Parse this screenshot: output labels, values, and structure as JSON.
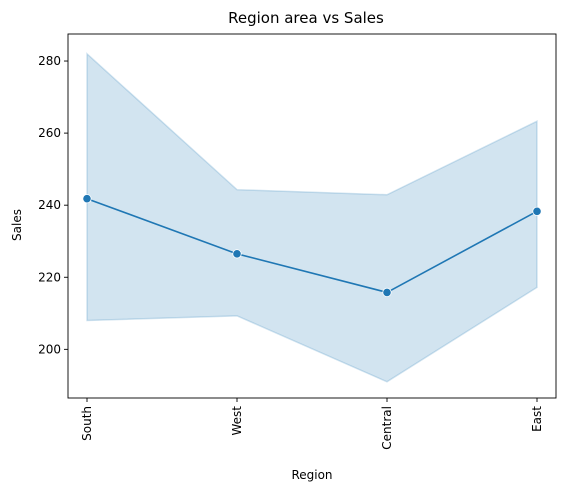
{
  "chart_data": {
    "type": "line",
    "title": "Region area vs Sales",
    "xlabel": "Region",
    "ylabel": "Sales",
    "categories": [
      "South",
      "West",
      "Central",
      "East"
    ],
    "series": [
      {
        "values": [
          241.8,
          226.5,
          215.8,
          238.3
        ],
        "ci_lower": [
          208.0,
          209.3,
          191.0,
          217.2
        ],
        "ci_upper": [
          282.0,
          244.3,
          242.9,
          263.3
        ]
      }
    ],
    "ylim": [
      186.5,
      287.5
    ],
    "yticks": [
      200,
      220,
      240,
      260,
      280
    ],
    "grid": false,
    "colors": {
      "line": "#1f77b4",
      "band": "#1f77b4"
    }
  }
}
